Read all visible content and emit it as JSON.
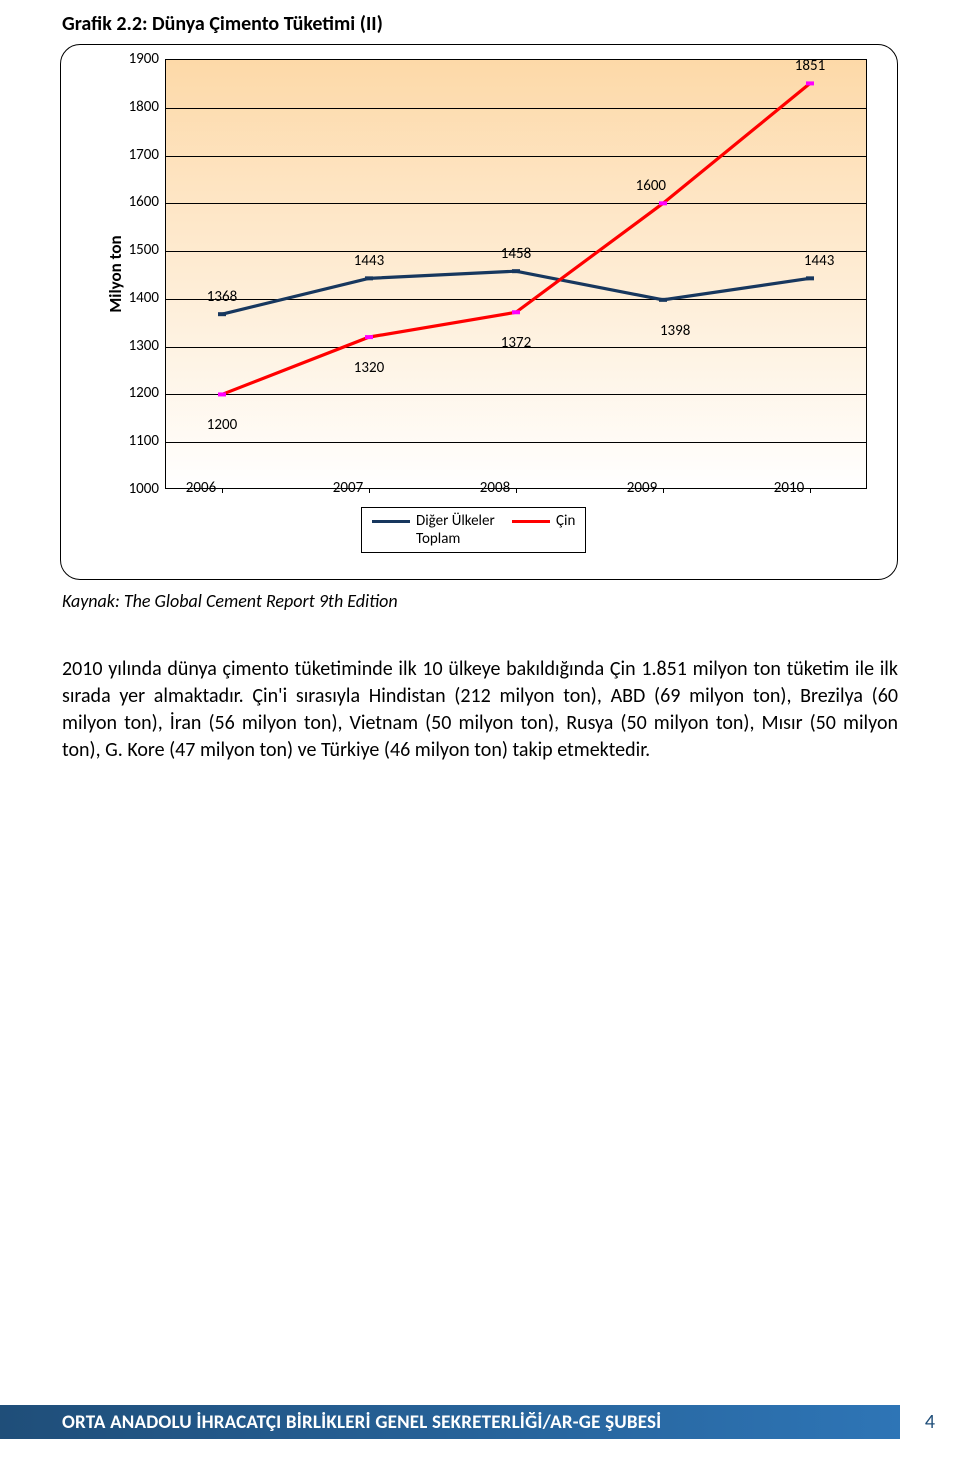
{
  "chart": {
    "title": "Grafik 2.2: Dünya Çimento Tüketimi (II)",
    "type": "line",
    "ylabel": "Milyon ton",
    "ylim": [
      1000,
      1900
    ],
    "yticks": [
      1000,
      1100,
      1200,
      1300,
      1400,
      1500,
      1600,
      1700,
      1800,
      1900
    ],
    "categories": [
      "2006",
      "2007",
      "2008",
      "2009",
      "2010"
    ],
    "background_top": "#fdd9a8",
    "background_bottom": "#ffffff",
    "grid_color": "#000000",
    "series": [
      {
        "name": "Diğer Ülkeler Toplam",
        "color": "#17375e",
        "marker_color": "#17375e",
        "values": [
          1368,
          1443,
          1458,
          1398,
          1443
        ],
        "labels": [
          "1368",
          "1443",
          "1458",
          "1398",
          "1443"
        ],
        "label_dy": [
          -8,
          -8,
          -8,
          22,
          -8
        ]
      },
      {
        "name": "Çin",
        "color": "#ff0000",
        "marker_color": "#ff00ff",
        "values": [
          1200,
          1320,
          1372,
          1600,
          1851
        ],
        "labels": [
          "1200",
          "1320",
          "1372",
          "1600",
          "1851"
        ],
        "label_dy": [
          22,
          22,
          22,
          -8,
          -8
        ]
      }
    ],
    "legend": {
      "line1": "Diğer Ülkeler",
      "line2": "Toplam",
      "item2": "Çin"
    }
  },
  "source": "Kaynak: The Global Cement Report 9th Edition",
  "body": "2010 yılında dünya çimento tüketiminde ilk 10 ülkeye bakıldığında Çin 1.851 milyon ton tüketim ile ilk sırada yer almaktadır. Çin'i sırasıyla Hindistan (212 milyon ton), ABD (69 milyon ton), Brezilya (60 milyon ton),  İran (56 milyon ton), Vietnam (50 milyon ton), Rusya (50 milyon ton), Mısır (50 milyon ton), G. Kore (47 milyon ton) ve Türkiye (46 milyon ton)  takip etmektedir.",
  "footer": {
    "text": "ORTA ANADOLU İHRACATÇI BİRLİKLERİ GENEL SEKRETERLİĞİ/AR-GE ŞUBESİ",
    "bg_left": "#1f4e79",
    "bg_right": "#2e75b6",
    "page_number": "4",
    "page_color": "#1f4e79"
  }
}
